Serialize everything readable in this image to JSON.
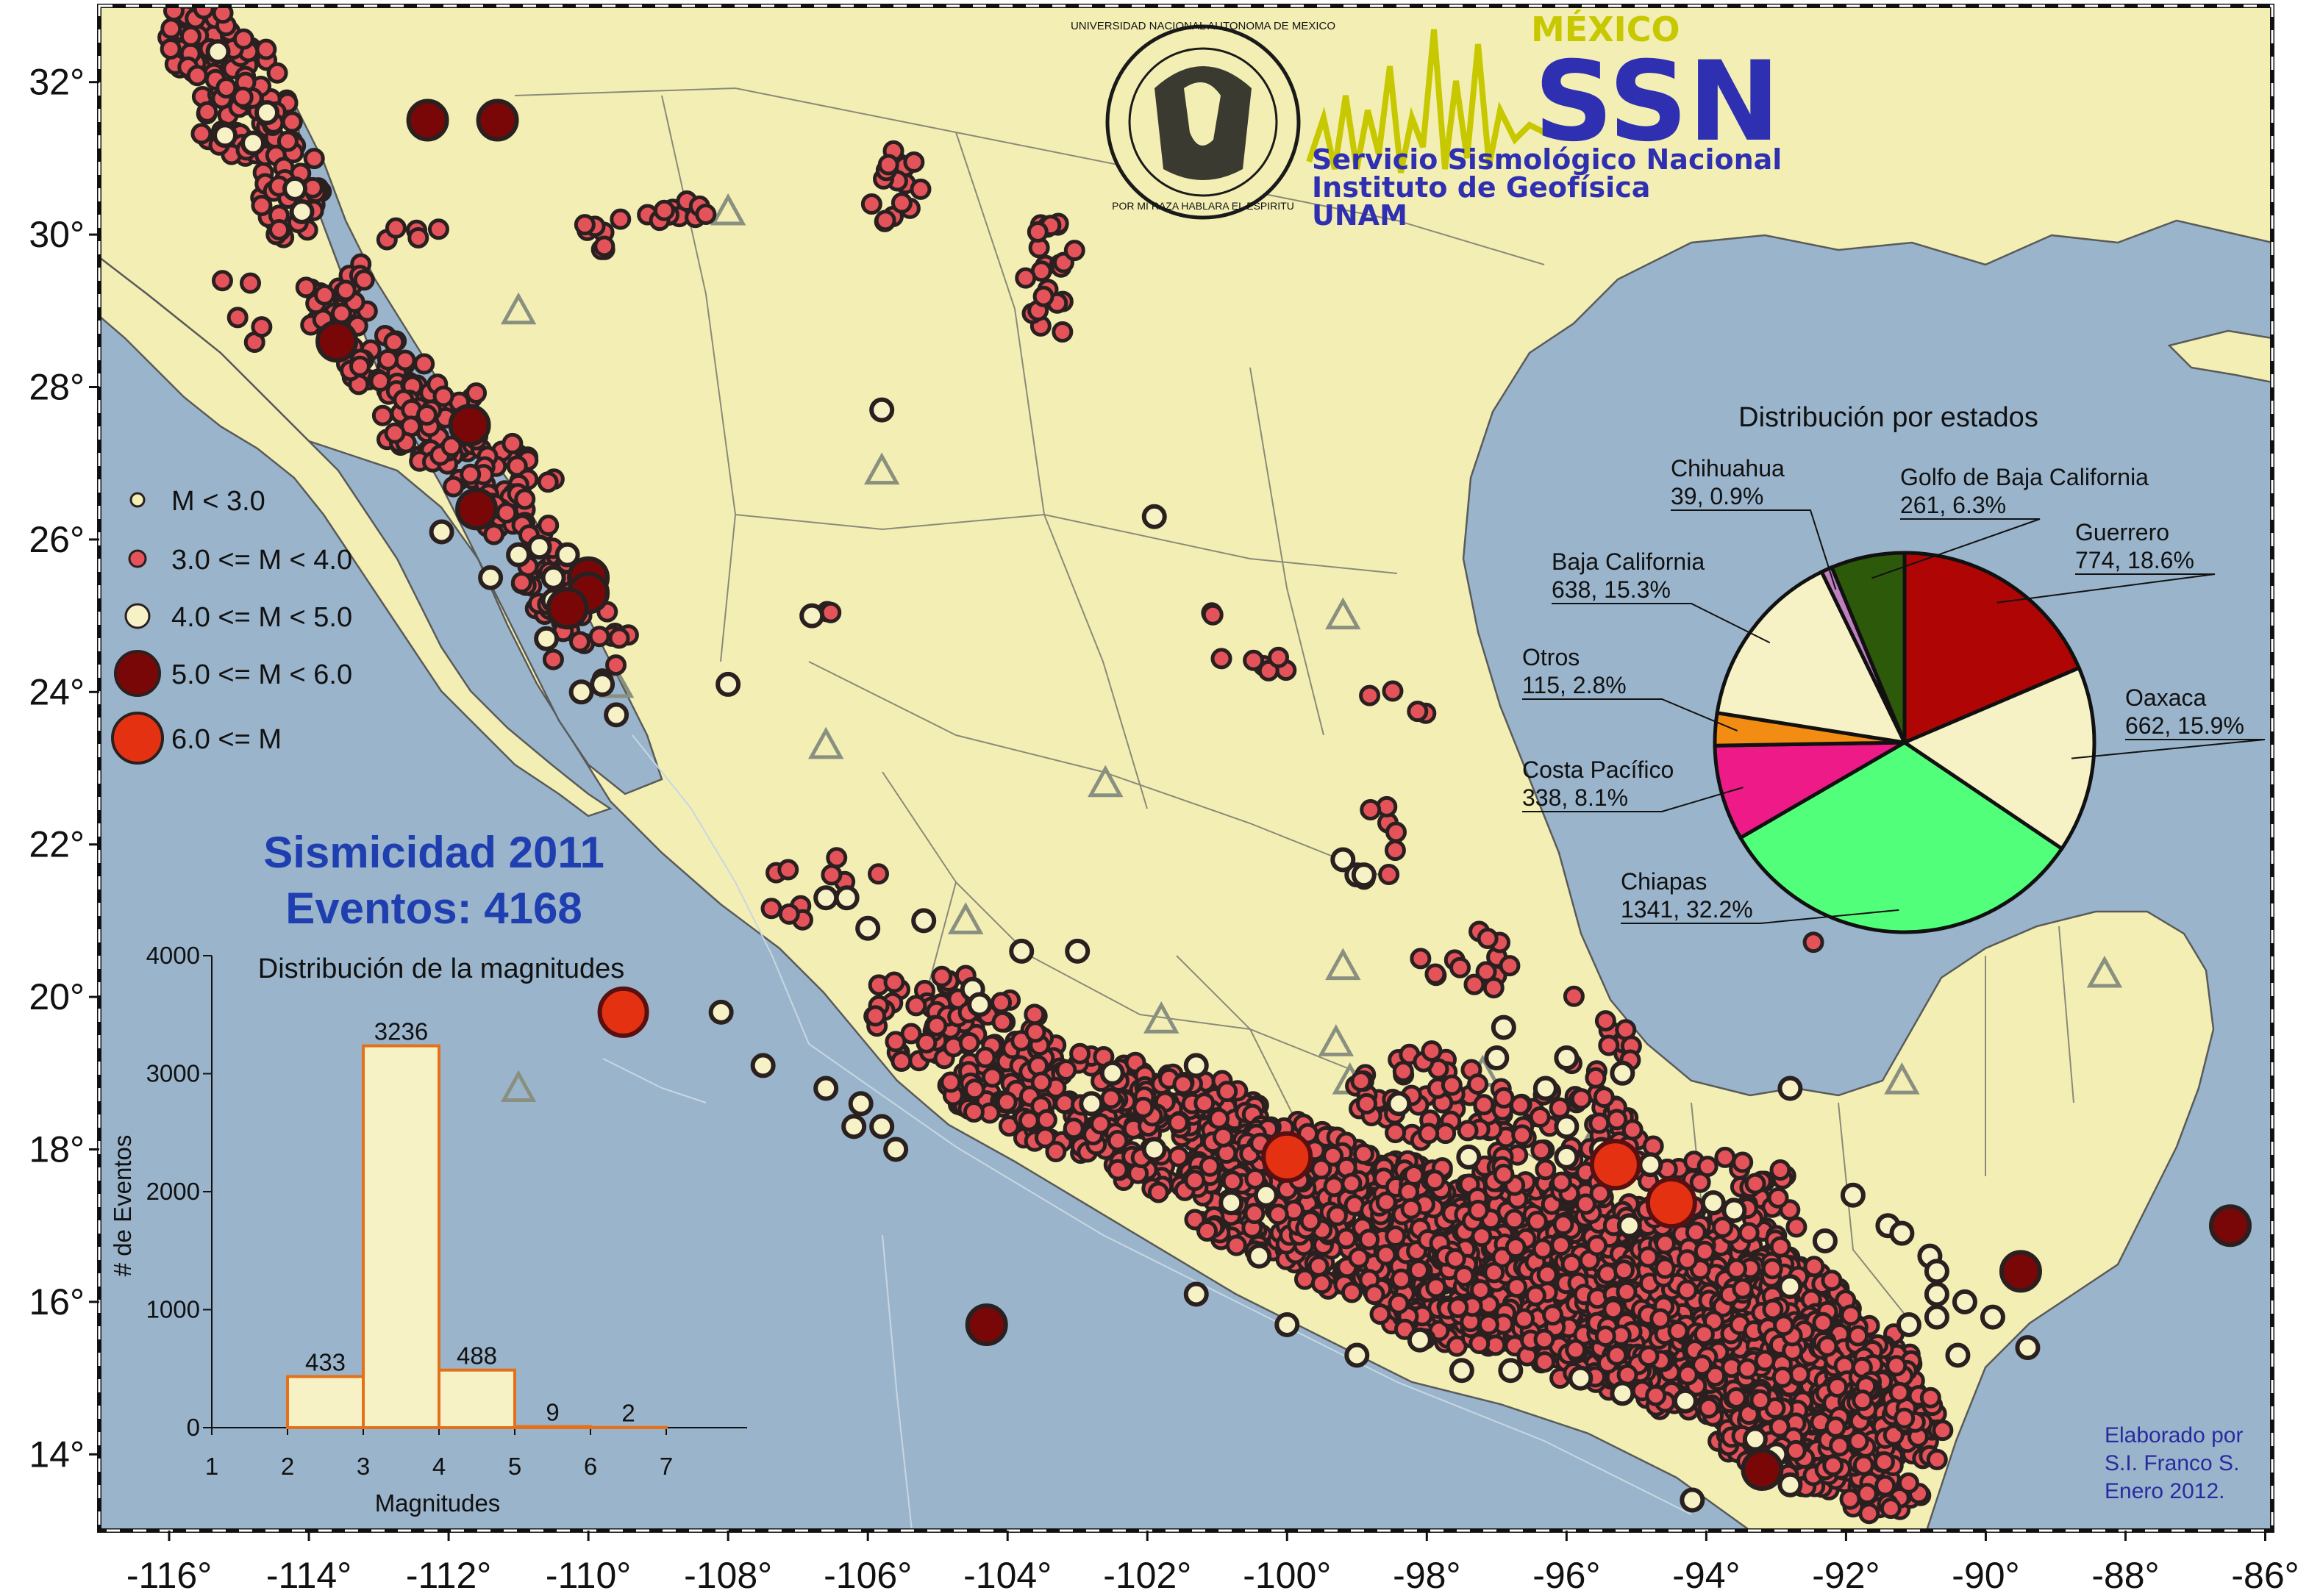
{
  "map": {
    "lon_ticks": [
      "-116°",
      "-114°",
      "-112°",
      "-110°",
      "-108°",
      "-106°",
      "-104°",
      "-102°",
      "-100°",
      "-98°",
      "-96°",
      "-94°",
      "-92°",
      "-90°",
      "-88°",
      "-86°"
    ],
    "lat_ticks": [
      "32°",
      "30°",
      "28°",
      "26°",
      "24°",
      "22°",
      "20°",
      "18°",
      "16°",
      "14°"
    ],
    "lon_values": [
      -116,
      -114,
      -112,
      -110,
      -108,
      -106,
      -104,
      -102,
      -100,
      -98,
      -96,
      -94,
      -92,
      -90,
      -88,
      -86
    ],
    "lat_values": [
      32,
      30,
      28,
      26,
      24,
      22,
      20,
      18,
      16,
      14
    ],
    "lon_range": [
      -117,
      -85.9
    ],
    "lat_range": [
      13.0,
      33.0
    ],
    "colors": {
      "ocean": "#9ab5cb",
      "land": "#f3efb4",
      "border": "#777777"
    }
  },
  "logo": {
    "country": "MÉXICO",
    "acronym": "SSN",
    "line1": "Servicio Sismológico Nacional",
    "line2": "Instituto de Geofísica",
    "line3": "UNAM",
    "seal_ring": "UNIVERSIDAD NACIONAL AUTONOMA DE MEXICO",
    "seal_motto": "POR MI RAZA HABLARA EL ESPIRITU"
  },
  "legend": {
    "items": [
      {
        "label": "M < 3.0",
        "color": "#f3efb4"
      },
      {
        "label": "3.0 <= M < 4.0",
        "color": "#e4535a"
      },
      {
        "label": "4.0 <= M < 5.0",
        "color": "#f7f2c6"
      },
      {
        "label": "5.0 <= M < 6.0",
        "color": "#7a0707"
      },
      {
        "label": "6.0 <= M",
        "color": "#e43112"
      }
    ]
  },
  "title": {
    "line1": "Sismicidad  2011",
    "line2": "Eventos: 4168"
  },
  "chart_data": [
    {
      "type": "bar",
      "title": "Distribución de la magnitudes",
      "xlabel": "Magnitudes",
      "ylabel": "# de Eventos",
      "x_ticks": [
        "1",
        "2",
        "3",
        "4",
        "5",
        "6",
        "7"
      ],
      "y_ticks": [
        "0",
        "1000",
        "2000",
        "3000",
        "4000"
      ],
      "ylim": [
        0,
        4000
      ],
      "xlim": [
        1,
        7
      ],
      "bins": [
        [
          2,
          3
        ],
        [
          3,
          4
        ],
        [
          4,
          5
        ],
        [
          5,
          6
        ],
        [
          6,
          7
        ]
      ],
      "values": [
        433,
        3236,
        488,
        9,
        2
      ],
      "labels": [
        "433",
        "3236",
        "488",
        "9",
        "2"
      ],
      "fill": "#f7f2c6",
      "edge": "#e4701a"
    },
    {
      "type": "pie",
      "title": "Distribución por estados",
      "slices": [
        {
          "name": "Guerrero",
          "value": 774,
          "label": "774, 18.6%",
          "color": "#b00505"
        },
        {
          "name": "Oaxaca",
          "value": 662,
          "label": "662, 15.9%",
          "color": "#f7f2c6"
        },
        {
          "name": "Chiapas",
          "value": 1341,
          "label": "1341, 32.2%",
          "color": "#52ff7a"
        },
        {
          "name": "Costa Pacífico",
          "value": 338,
          "label": "338, 8.1%",
          "color": "#ee1a88"
        },
        {
          "name": "Otros",
          "value": 115,
          "label": "115, 2.8%",
          "color": "#f28c12"
        },
        {
          "name": "Baja California",
          "value": 638,
          "label": "638, 15.3%",
          "color": "#f7f2c6"
        },
        {
          "name": "Chihuahua",
          "value": 39,
          "label": "39, 0.9%",
          "color": "#c080c0"
        },
        {
          "name": "Golfo de Baja California",
          "value": 261,
          "label": "261, 6.3%",
          "color": "#2d5a0a"
        }
      ]
    }
  ],
  "credit": {
    "line1": "Elaborado por",
    "line2": "S.I. Franco S.",
    "line3": "Enero 2012."
  },
  "triangle_color": "#8a9080",
  "volcanoes": [
    [
      -108,
      30.3
    ],
    [
      -111,
      29
    ],
    [
      -105.8,
      26.9
    ],
    [
      -109.6,
      24.1
    ],
    [
      -106.6,
      23.3
    ],
    [
      -102.6,
      22.8
    ],
    [
      -104.6,
      21.0
    ],
    [
      -111,
      18.8
    ],
    [
      -101.8,
      19.7
    ],
    [
      -99.2,
      20.4
    ],
    [
      -99.3,
      19.4
    ],
    [
      -99.1,
      18.9
    ],
    [
      -97.2,
      19.0
    ],
    [
      -95.5,
      18.3
    ],
    [
      -93.1,
      17.3
    ],
    [
      -91.2,
      18.9
    ],
    [
      -88.3,
      20.3
    ],
    [
      -99.2,
      25.0
    ]
  ],
  "events": {
    "m4": [
      [
        -115.3,
        32.4
      ],
      [
        -115.2,
        31.3
      ],
      [
        -114.2,
        30.6
      ],
      [
        -114.1,
        30.3
      ],
      [
        -111.0,
        25.8
      ],
      [
        -111.4,
        25.5
      ],
      [
        -110.7,
        25.9
      ],
      [
        -110.5,
        25.5
      ],
      [
        -109.9,
        25.3
      ],
      [
        -110.6,
        24.7
      ],
      [
        -110.1,
        24.0
      ],
      [
        -112.1,
        26.1
      ],
      [
        -109.8,
        24.1
      ],
      [
        -108.0,
        24.1
      ],
      [
        -106.8,
        25.0
      ],
      [
        -105.8,
        27.7
      ],
      [
        -101.9,
        26.3
      ],
      [
        -99.2,
        21.8
      ],
      [
        -99.0,
        21.6
      ],
      [
        -98.9,
        21.6
      ],
      [
        -106.6,
        21.3
      ],
      [
        -106.3,
        21.3
      ],
      [
        -106.0,
        20.9
      ],
      [
        -105.2,
        21.0
      ],
      [
        -107.5,
        19.1
      ],
      [
        -106.6,
        18.8
      ],
      [
        -106.1,
        18.6
      ],
      [
        -106.2,
        18.3
      ],
      [
        -105.8,
        18.3
      ],
      [
        -105.6,
        18.0
      ],
      [
        -104.3,
        15.6
      ],
      [
        -101.9,
        18.0
      ],
      [
        -100.3,
        17.4
      ],
      [
        -100.8,
        17.3
      ],
      [
        -100.4,
        16.6
      ],
      [
        -101.3,
        16.1
      ],
      [
        -100.0,
        15.7
      ],
      [
        -99.0,
        15.3
      ],
      [
        -98.1,
        15.5
      ],
      [
        -97.5,
        15.1
      ],
      [
        -96.8,
        15.1
      ],
      [
        -95.8,
        15.0
      ],
      [
        -95.2,
        14.8
      ],
      [
        -94.3,
        14.7
      ],
      [
        -93.3,
        14.2
      ],
      [
        -93.0,
        14.0
      ],
      [
        -92.8,
        13.6
      ],
      [
        -94.2,
        13.4
      ],
      [
        -91.1,
        15.7
      ],
      [
        -90.3,
        16.0
      ],
      [
        -89.9,
        15.8
      ],
      [
        -89.4,
        15.4
      ],
      [
        -90.4,
        15.3
      ],
      [
        -90.7,
        15.8
      ],
      [
        -90.7,
        16.1
      ],
      [
        -90.8,
        16.6
      ],
      [
        -91.4,
        17.0
      ],
      [
        -92.8,
        16.2
      ],
      [
        -93.9,
        17.3
      ],
      [
        -94.8,
        17.8
      ],
      [
        -95.1,
        17.0
      ],
      [
        -95.5,
        18.0
      ],
      [
        -96.0,
        18.3
      ],
      [
        -96.3,
        18.8
      ],
      [
        -96.0,
        19.2
      ],
      [
        -95.2,
        19.0
      ],
      [
        -96.9,
        19.6
      ],
      [
        -97.0,
        19.2
      ],
      [
        -92.8,
        18.8
      ],
      [
        -91.2,
        16.9
      ],
      [
        -93.6,
        17.2
      ],
      [
        -92.3,
        16.8
      ],
      [
        -103.0,
        20.6
      ],
      [
        -104.5,
        20.1
      ],
      [
        -104.4,
        19.9
      ],
      [
        -108.1,
        19.8
      ],
      [
        -110.5,
        25.2
      ],
      [
        -110.3,
        25.8
      ],
      [
        -114.6,
        31.6
      ],
      [
        -114.8,
        31.2
      ],
      [
        -109.6,
        23.7
      ],
      [
        -103.8,
        20.6
      ],
      [
        -102.8,
        18.6
      ],
      [
        -102.5,
        19.0
      ],
      [
        -101.3,
        19.1
      ],
      [
        -98.4,
        18.6
      ],
      [
        -97.4,
        17.9
      ],
      [
        -96.0,
        17.9
      ],
      [
        -91.9,
        17.4
      ],
      [
        -90.7,
        16.4
      ]
    ],
    "m5": [
      [
        -112.3,
        31.5
      ],
      [
        -111.3,
        31.5
      ],
      [
        -110.0,
        25.5
      ],
      [
        -110.0,
        25.3
      ],
      [
        -111.6,
        26.4
      ],
      [
        -110.3,
        25.1
      ],
      [
        -113.6,
        28.6
      ],
      [
        -111.7,
        27.5
      ],
      [
        -104.3,
        15.7
      ],
      [
        -93.2,
        13.8
      ],
      [
        -89.5,
        16.4
      ],
      [
        -86.5,
        17.0
      ]
    ],
    "m6": [
      [
        -109.5,
        19.8
      ],
      [
        -100.0,
        17.9
      ],
      [
        -95.3,
        17.8
      ],
      [
        -94.5,
        17.3
      ]
    ],
    "m3_seed": [
      [
        -115.6,
        32.6,
        0.5,
        0.5,
        70
      ],
      [
        -115.0,
        31.8,
        0.7,
        0.8,
        60
      ],
      [
        -114.3,
        30.8,
        0.5,
        0.9,
        45
      ],
      [
        -113.6,
        29.2,
        0.5,
        0.6,
        35
      ],
      [
        -112.9,
        28.3,
        0.6,
        0.4,
        35
      ],
      [
        -112.2,
        27.6,
        0.8,
        0.6,
        50
      ],
      [
        -111.5,
        27.0,
        0.7,
        0.5,
        35
      ],
      [
        -111.2,
        26.4,
        0.4,
        0.4,
        20
      ],
      [
        -110.6,
        25.6,
        0.4,
        0.6,
        30
      ],
      [
        -110.0,
        24.6,
        0.7,
        0.5,
        15
      ],
      [
        -106.8,
        21.5,
        1.0,
        0.6,
        10
      ],
      [
        -105.2,
        19.8,
        0.9,
        0.7,
        45
      ],
      [
        -104.2,
        19.2,
        1.0,
        0.8,
        90
      ],
      [
        -102.9,
        18.6,
        1.2,
        0.7,
        110
      ],
      [
        -101.5,
        18.2,
        1.3,
        0.8,
        160
      ],
      [
        -100.1,
        17.5,
        1.4,
        0.9,
        200
      ],
      [
        -98.8,
        17.0,
        1.4,
        1.0,
        230
      ],
      [
        -97.6,
        16.6,
        1.4,
        1.2,
        260
      ],
      [
        -96.4,
        16.4,
        1.5,
        1.2,
        280
      ],
      [
        -95.1,
        16.0,
        1.6,
        1.3,
        300
      ],
      [
        -94.0,
        15.8,
        1.6,
        1.4,
        330
      ],
      [
        -93.0,
        15.2,
        1.3,
        1.4,
        340
      ],
      [
        -92.2,
        14.7,
        1.3,
        1.2,
        280
      ],
      [
        -91.5,
        14.2,
        0.9,
        1.0,
        140
      ],
      [
        -96.0,
        18.0,
        1.3,
        0.8,
        80
      ],
      [
        -98.0,
        18.7,
        1.2,
        0.6,
        50
      ],
      [
        -93.8,
        17.1,
        1.4,
        0.8,
        60
      ],
      [
        -103.4,
        29.4,
        0.4,
        0.9,
        22
      ],
      [
        -108.8,
        30.3,
        0.5,
        0.2,
        10
      ],
      [
        -105.6,
        30.6,
        0.4,
        0.5,
        18
      ],
      [
        -110.5,
        26.7,
        0.1,
        0.1,
        2
      ],
      [
        -106.6,
        25.0,
        0.2,
        0.1,
        2
      ],
      [
        -100.6,
        24.3,
        0.6,
        0.4,
        6
      ],
      [
        -98.5,
        23.6,
        0.5,
        0.5,
        4
      ],
      [
        -101.0,
        25.0,
        0.1,
        0.1,
        2
      ],
      [
        -98.7,
        22.0,
        0.5,
        0.7,
        8
      ],
      [
        -97.5,
        20.4,
        0.7,
        0.6,
        14
      ],
      [
        -95.6,
        19.5,
        0.7,
        0.6,
        12
      ],
      [
        -92.5,
        20.8,
        0.1,
        0.1,
        1
      ],
      [
        -115.0,
        29.0,
        0.5,
        0.5,
        5
      ],
      [
        -112.5,
        30.0,
        0.4,
        0.5,
        5
      ],
      [
        -109.7,
        30.0,
        0.5,
        0.3,
        8
      ]
    ]
  }
}
